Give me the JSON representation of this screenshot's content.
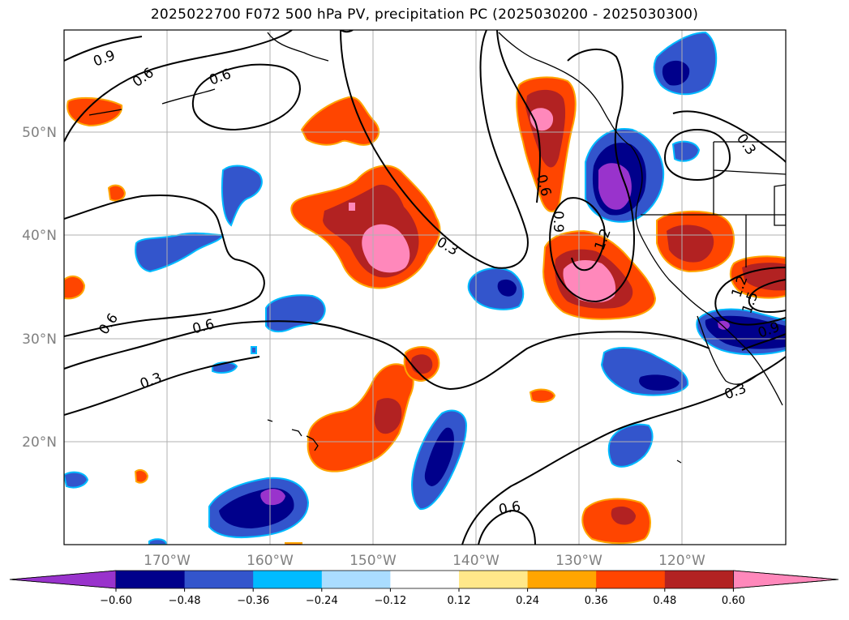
{
  "title": "2025022700 F072 500 hPa PV, precipitation PC (2025030200 - 2025030300)",
  "map": {
    "lon_ticks": [
      "170°W",
      "160°W",
      "150°W",
      "140°W",
      "130°W",
      "120°W"
    ],
    "lat_ticks": [
      "50°N",
      "40°N",
      "30°N",
      "20°N"
    ],
    "gridlines": true,
    "contour_labels": [
      "0.9",
      "0.6",
      "0.6",
      "0.6",
      "0.6",
      "0.3",
      "0.3",
      "0.6",
      "0.9",
      "1.2",
      "0.3",
      "1.5",
      "1.2",
      "0.9",
      "0.3",
      "0.6"
    ]
  },
  "colorbar": {
    "tick_labels": [
      "−0.60",
      "−0.48",
      "−0.36",
      "−0.24",
      "−0.12",
      "0.12",
      "0.24",
      "0.36",
      "0.48",
      "0.60"
    ],
    "colors": [
      "#9933cc",
      "#00008b",
      "#3355cc",
      "#00bbff",
      "#aaddff",
      "#ffffff",
      "#ffe88a",
      "#ffa500",
      "#ff4500",
      "#b22222",
      "#ff88bb"
    ]
  }
}
